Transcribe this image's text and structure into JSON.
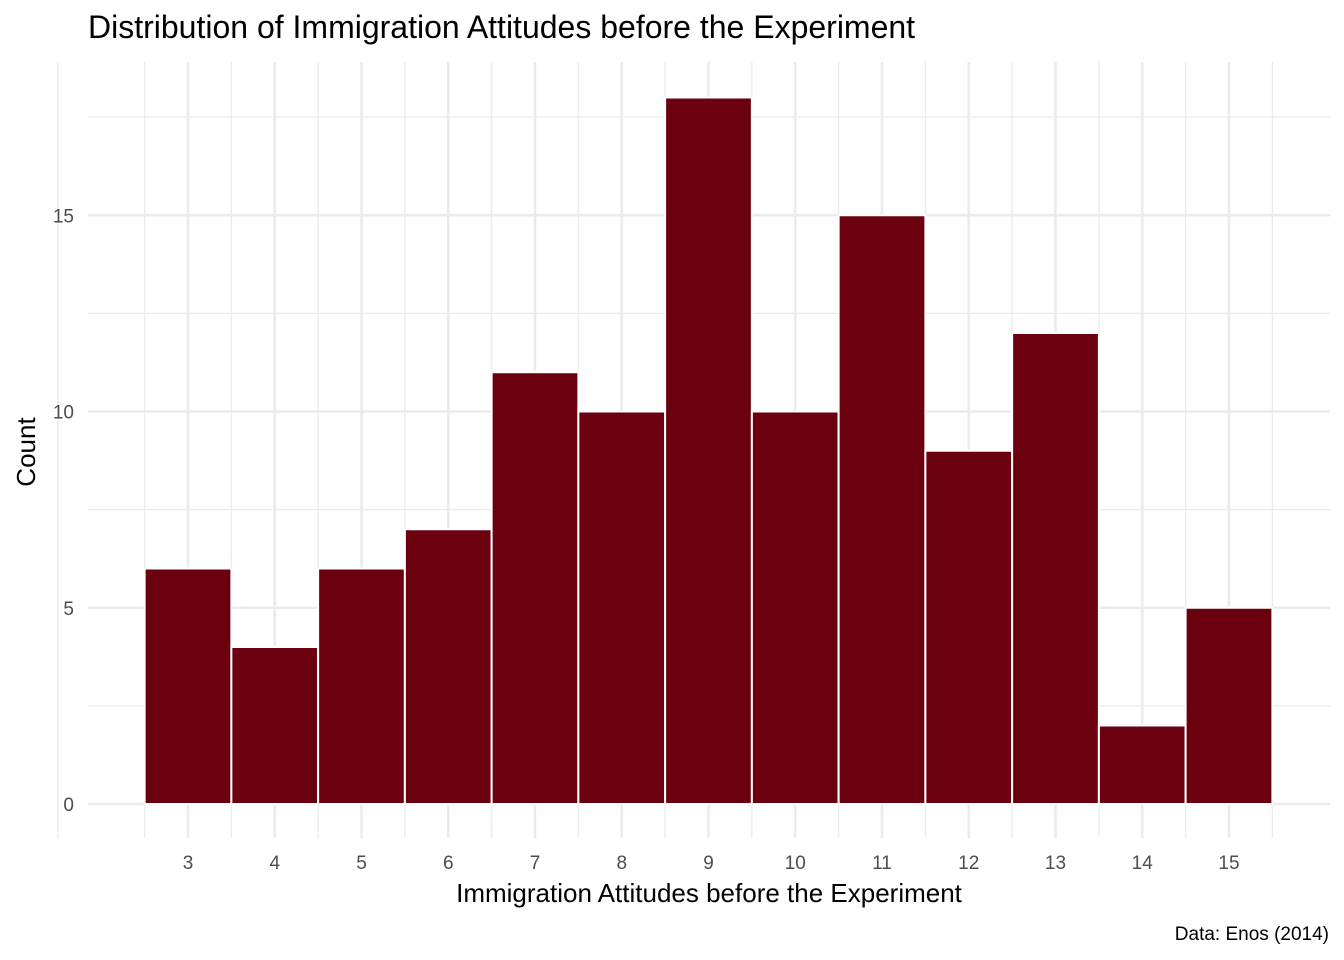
{
  "chart_data": {
    "type": "bar",
    "title": "Distribution of Immigration Attitudes before the Experiment",
    "xlabel": "Immigration Attitudes before the Experiment",
    "ylabel": "Count",
    "caption": "Data: Enos (2014)",
    "categories": [
      "3",
      "4",
      "5",
      "6",
      "7",
      "8",
      "9",
      "10",
      "11",
      "12",
      "13",
      "14",
      "15"
    ],
    "x": [
      3,
      4,
      5,
      6,
      7,
      8,
      9,
      10,
      11,
      12,
      13,
      14,
      15
    ],
    "values": [
      6,
      4,
      6,
      7,
      11,
      10,
      18,
      10,
      15,
      9,
      12,
      2,
      5
    ],
    "yticks": [
      "0",
      "5",
      "10",
      "15"
    ],
    "xlim": [
      2,
      16
    ],
    "ylim": [
      0,
      18
    ],
    "grid": true,
    "legend": "none",
    "colors": {
      "bar_fill": "#6b000f",
      "bar_outline": "#ffffff",
      "grid": "#ebebeb"
    }
  }
}
